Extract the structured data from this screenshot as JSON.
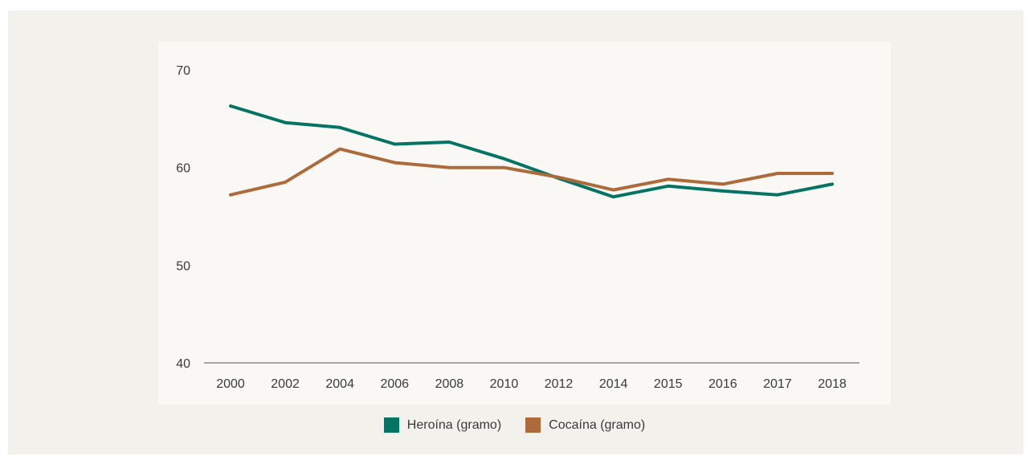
{
  "chart_data": {
    "type": "line",
    "categories": [
      "2000",
      "2002",
      "2004",
      "2006",
      "2008",
      "2010",
      "2012",
      "2014",
      "2015",
      "2016",
      "2017",
      "2018"
    ],
    "ylim": [
      40,
      70
    ],
    "yticks": [
      40,
      50,
      60,
      70
    ],
    "grid": false,
    "legend_position": "bottom-center",
    "series": [
      {
        "name": "Heroína (gramo)",
        "color": "#067464",
        "values": [
          66.3,
          64.6,
          64.1,
          62.4,
          62.6,
          60.9,
          58.9,
          57.0,
          58.1,
          57.6,
          57.2,
          58.3
        ]
      },
      {
        "name": "Cocaína (gramo)",
        "color": "#ad6a3a",
        "values": [
          57.2,
          58.5,
          61.9,
          60.5,
          60.0,
          60.0,
          59.0,
          57.7,
          58.8,
          58.3,
          59.4,
          59.4
        ]
      }
    ]
  }
}
